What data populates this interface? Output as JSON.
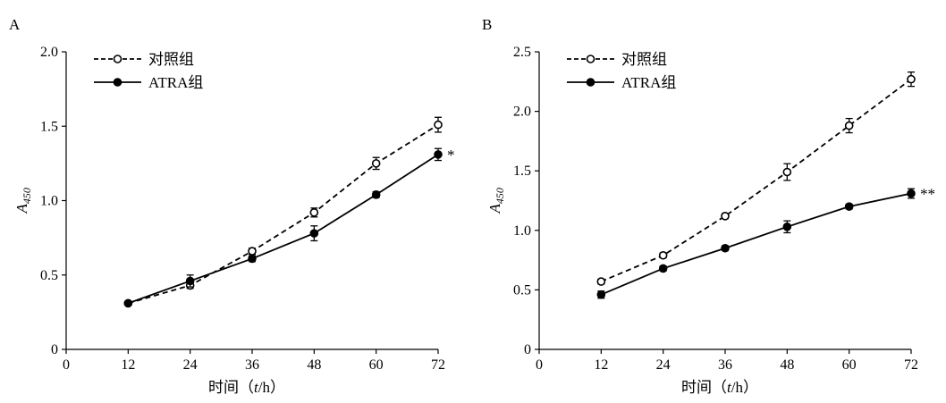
{
  "chart_data": [
    {
      "type": "line",
      "panel_label": "A",
      "x": [
        12,
        24,
        36,
        48,
        60,
        72
      ],
      "xlim": [
        0,
        72
      ],
      "x_ticks": [
        "0",
        "12",
        "24",
        "36",
        "48",
        "60",
        "72"
      ],
      "ylim": [
        0,
        2.0
      ],
      "y_ticks": [
        "0",
        "0.5",
        "1.0",
        "1.5",
        "2.0"
      ],
      "y_tick_values": [
        0,
        0.5,
        1.0,
        1.5,
        2.0
      ],
      "ylabel": "A",
      "ylabel_sub": "450",
      "xlabel": "时间（",
      "xlabel_italic": "t",
      "xlabel_end": "/h）",
      "grid": false,
      "legend_position": "top-left",
      "series": [
        {
          "name": "对照组",
          "style": "dashed",
          "marker": "open-circle",
          "values": [
            0.31,
            0.43,
            0.66,
            0.92,
            1.25,
            1.51
          ],
          "errors": [
            0.01,
            0.02,
            0.02,
            0.03,
            0.04,
            0.05
          ]
        },
        {
          "name": "ATRA组",
          "style": "solid",
          "marker": "filled-circle",
          "values": [
            0.31,
            0.46,
            0.61,
            0.78,
            1.04,
            1.31
          ],
          "errors": [
            0.01,
            0.04,
            0.02,
            0.05,
            0.02,
            0.04
          ]
        }
      ],
      "annotation": "*"
    },
    {
      "type": "line",
      "panel_label": "B",
      "x": [
        12,
        24,
        36,
        48,
        60,
        72
      ],
      "xlim": [
        0,
        72
      ],
      "x_ticks": [
        "0",
        "12",
        "24",
        "36",
        "48",
        "60",
        "72"
      ],
      "ylim": [
        0,
        2.5
      ],
      "y_ticks": [
        "0",
        "0.5",
        "1.0",
        "1.5",
        "2.0",
        "2.5"
      ],
      "y_tick_values": [
        0,
        0.5,
        1.0,
        1.5,
        2.0,
        2.5
      ],
      "ylabel": "A",
      "ylabel_sub": "450",
      "xlabel": "时间（",
      "xlabel_italic": "t",
      "xlabel_end": "/h）",
      "grid": false,
      "legend_position": "top-left",
      "series": [
        {
          "name": "对照组",
          "style": "dashed",
          "marker": "open-circle",
          "values": [
            0.57,
            0.79,
            1.12,
            1.49,
            1.88,
            2.27
          ],
          "errors": [
            0.02,
            0.02,
            0.02,
            0.07,
            0.06,
            0.06
          ]
        },
        {
          "name": "ATRA组",
          "style": "solid",
          "marker": "filled-circle",
          "values": [
            0.46,
            0.68,
            0.85,
            1.03,
            1.2,
            1.31
          ],
          "errors": [
            0.03,
            0.02,
            0.02,
            0.05,
            0.02,
            0.04
          ]
        }
      ],
      "annotation": "**"
    }
  ]
}
